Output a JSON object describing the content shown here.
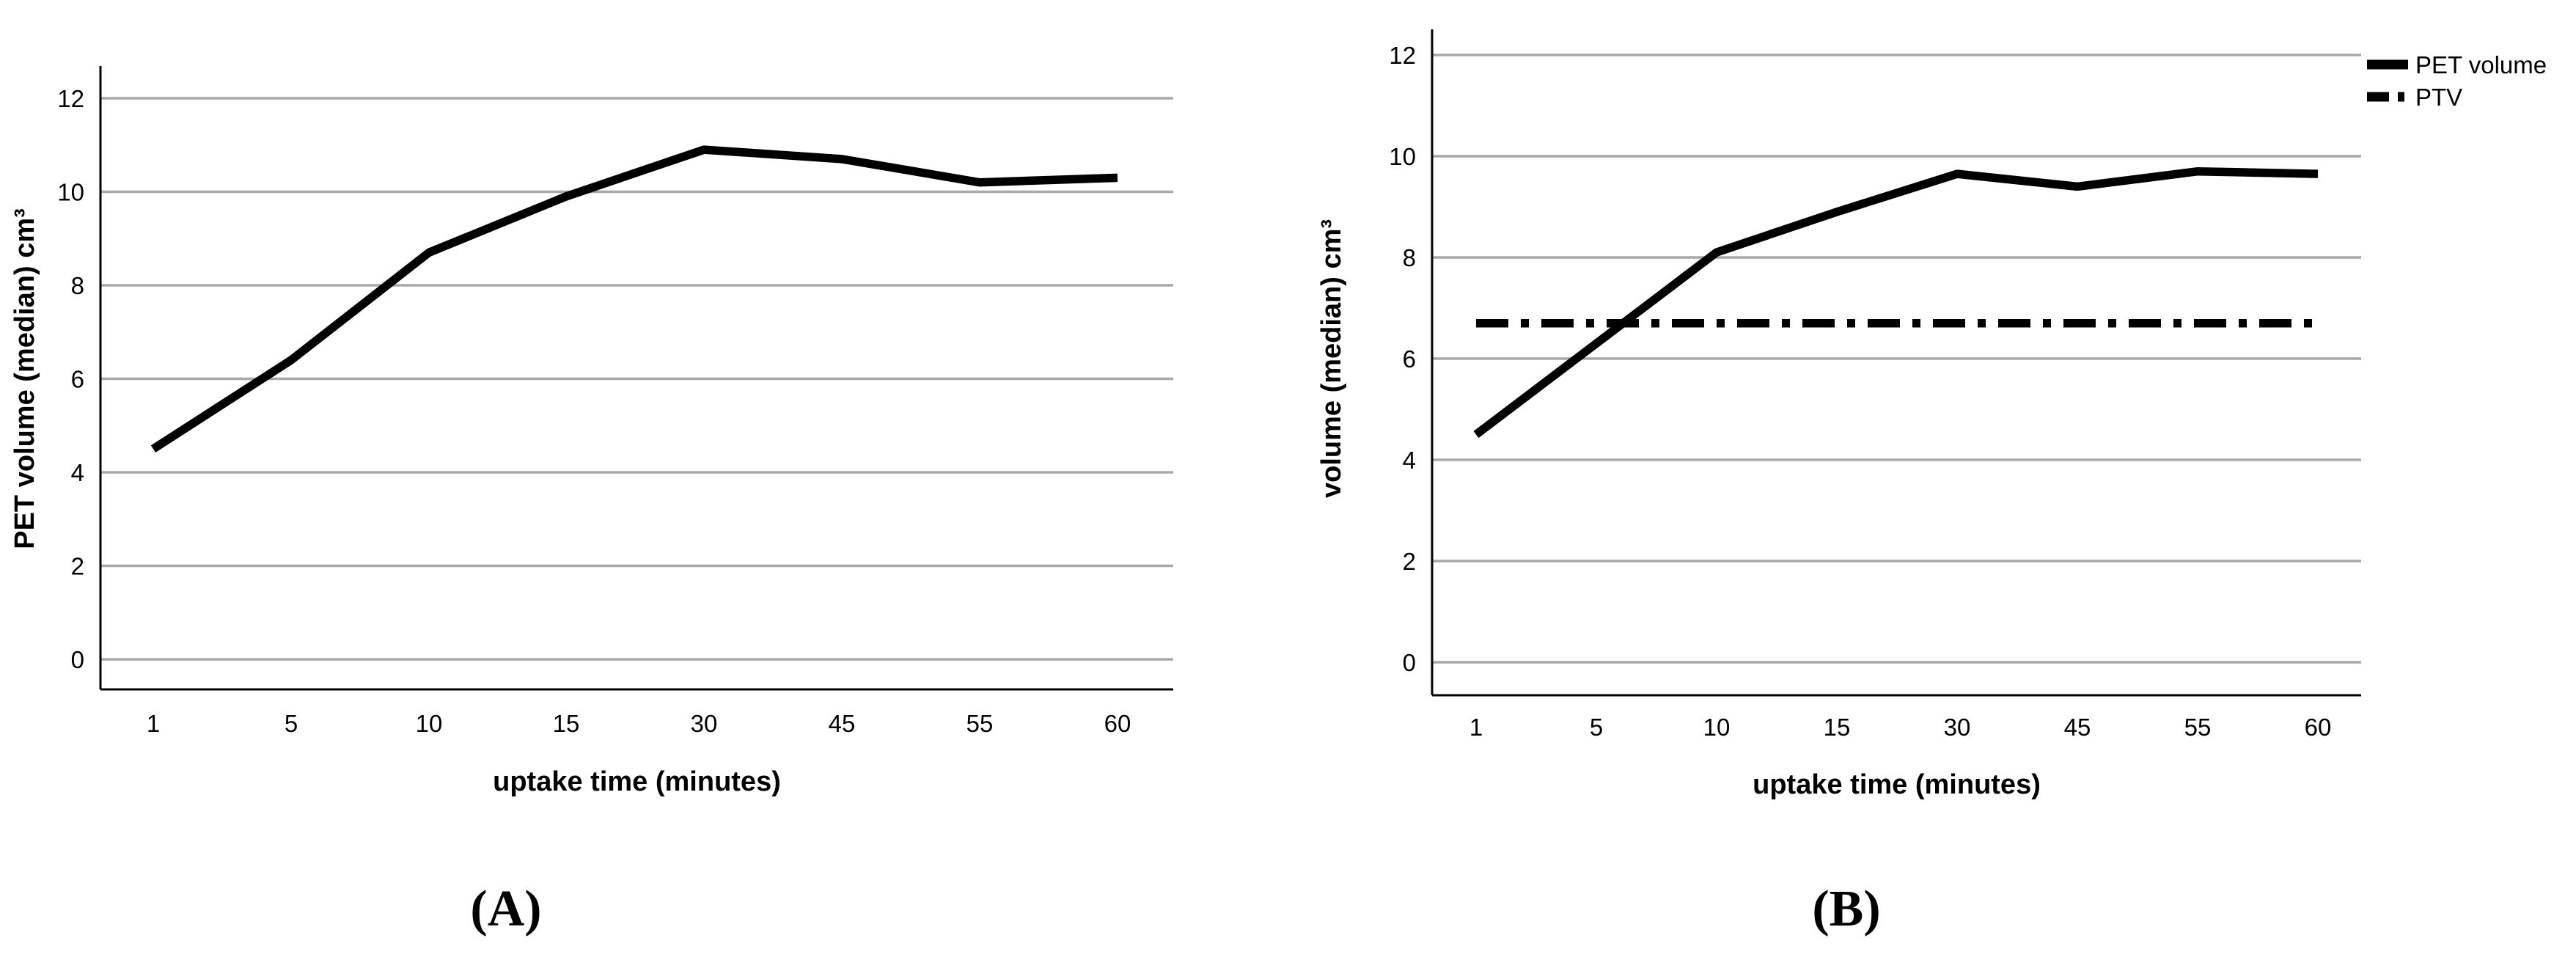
{
  "figure": {
    "background": "#ffffff",
    "line_color": "#000000",
    "gridline_color": "#a8a8a8",
    "panel_a_label": "(A)",
    "panel_b_label": "(B)"
  },
  "chart_data": [
    {
      "type": "line",
      "panel": "A",
      "title": "",
      "categories": [
        "1",
        "5",
        "10",
        "15",
        "30",
        "45",
        "55",
        "60"
      ],
      "xlabel": "uptake time (minutes)",
      "ylabel": "PET volume (median) cm³",
      "ylim": [
        0,
        12
      ],
      "yticks": [
        0,
        2,
        4,
        6,
        8,
        10,
        12
      ],
      "grid": true,
      "legend": null,
      "series": [
        {
          "name": "PET volume",
          "style": "solid",
          "values": [
            4.5,
            6.4,
            8.7,
            9.9,
            10.9,
            10.7,
            10.2,
            10.3
          ]
        }
      ]
    },
    {
      "type": "line",
      "panel": "B",
      "title": "",
      "categories": [
        "1",
        "5",
        "10",
        "15",
        "30",
        "45",
        "55",
        "60"
      ],
      "xlabel": "uptake time (minutes)",
      "ylabel": "volume (median) cm³",
      "ylim": [
        0,
        12
      ],
      "yticks": [
        0,
        2,
        4,
        6,
        8,
        10,
        12
      ],
      "grid": true,
      "legend": {
        "position": "top-right",
        "entries": [
          "PET volume",
          "PTV"
        ]
      },
      "series": [
        {
          "name": "PET volume",
          "style": "solid",
          "values": [
            4.5,
            6.3,
            8.1,
            8.9,
            9.65,
            9.4,
            9.7,
            9.65
          ]
        },
        {
          "name": "PTV",
          "style": "dash-dot",
          "values": [
            6.7,
            6.7,
            6.7,
            6.7,
            6.7,
            6.7,
            6.7,
            6.7
          ]
        }
      ]
    }
  ]
}
